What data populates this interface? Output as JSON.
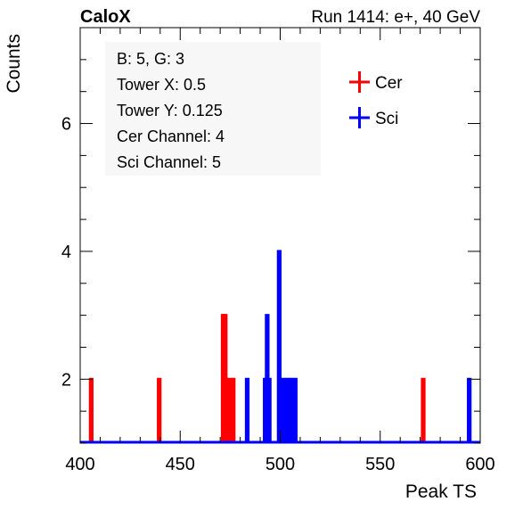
{
  "chart_data": {
    "type": "histogram-step",
    "title_left": "CaloX",
    "title_right": "Run 1414: e+, 40 GeV",
    "xlabel": "Peak TS",
    "ylabel": "Counts",
    "xlim": [
      400,
      600
    ],
    "ylim": [
      1,
      7.5
    ],
    "x_ticks": [
      400,
      450,
      500,
      550,
      600
    ],
    "y_ticks": [
      2,
      4,
      6
    ],
    "info_box": [
      "B: 5, G: 3",
      "Tower X: 0.5",
      "Tower Y: 0.125",
      "Cer Channel: 4",
      "Sci Channel: 5"
    ],
    "legend": [
      "Cer",
      "Sci"
    ],
    "legend_position": "top-right",
    "series": [
      {
        "name": "Cer",
        "color": "#ff0000",
        "bins": [
          [
            405,
            2
          ],
          [
            439,
            2
          ],
          [
            471,
            3
          ],
          [
            472,
            3
          ],
          [
            474,
            2
          ],
          [
            476,
            2
          ],
          [
            571,
            2
          ]
        ]
      },
      {
        "name": "Sci",
        "color": "#0000ff",
        "bins": [
          [
            483,
            2
          ],
          [
            492,
            2
          ],
          [
            493,
            3
          ],
          [
            494,
            2
          ],
          [
            499,
            4
          ],
          [
            501,
            2
          ],
          [
            503,
            2
          ],
          [
            505,
            2
          ],
          [
            507,
            2
          ],
          [
            594,
            2
          ]
        ]
      }
    ]
  }
}
